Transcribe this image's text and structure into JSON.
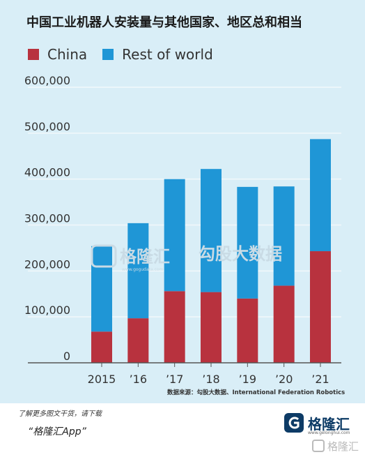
{
  "header": {
    "title": "中国工业机器人安装量与其他国家、地区总和相当"
  },
  "colors": {
    "china": "#b8323e",
    "rest_of_world": "#1f96d6",
    "panel": "#d9eef7",
    "grid": "#f2f8fb",
    "axis": "#555555"
  },
  "chart_data": {
    "type": "bar",
    "stacked": true,
    "title": "中国工业机器人安装量与其他国家、地区总和相当",
    "xlabel": "",
    "ylabel": "",
    "categories": [
      "2015",
      "’16",
      "’17",
      "’18",
      "’19",
      "’20",
      "’21"
    ],
    "series": [
      {
        "name": "China",
        "values": [
          68000,
          97000,
          156000,
          154000,
          140000,
          168000,
          243000
        ]
      },
      {
        "name": "Rest of world",
        "values": [
          186000,
          207000,
          244000,
          268000,
          243000,
          216000,
          244000
        ]
      }
    ],
    "ylim": [
      0,
      600000
    ],
    "yticks": [
      0,
      100000,
      200000,
      300000,
      400000,
      500000,
      600000
    ],
    "ytick_labels": [
      "0",
      "100,000",
      "200,000",
      "300,000",
      "400,000",
      "500,000",
      "600,000"
    ],
    "legend": "top-left",
    "grid": true,
    "source": "数据来源：勾股大数据、International Federation Robotics"
  },
  "watermarks": {
    "center_brand": "格隆汇",
    "center_data": "勾股大数据",
    "center_url": "www.gogudata.com"
  },
  "footer": {
    "note": "了解更多图文干货，请下载",
    "app": "“格隆汇App”",
    "brand_name": "格隆汇",
    "brand_url": "www.gelonghui.com",
    "corner_watermark": "格隆汇"
  }
}
